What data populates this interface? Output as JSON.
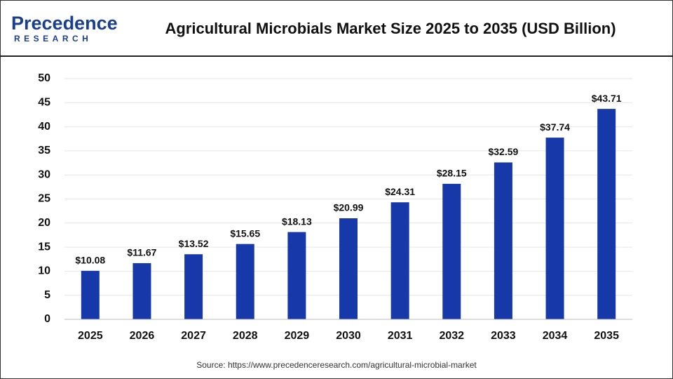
{
  "logo": {
    "name": "Precedence",
    "tagline": "RESEARCH"
  },
  "chart_data": {
    "type": "bar",
    "title": "Agricultural Microbials Market Size 2025 to 2035 (USD Billion)",
    "categories": [
      "2025",
      "2026",
      "2027",
      "2028",
      "2029",
      "2030",
      "2031",
      "2032",
      "2033",
      "2034",
      "2035"
    ],
    "values": [
      10.08,
      11.67,
      13.52,
      15.65,
      18.13,
      20.99,
      24.31,
      28.15,
      32.59,
      37.74,
      43.71
    ],
    "value_labels": [
      "$10.08",
      "$11.67",
      "$13.52",
      "$15.65",
      "$18.13",
      "$20.99",
      "$24.31",
      "$28.15",
      "$32.59",
      "$37.74",
      "$43.71"
    ],
    "color": "#1638a8",
    "ylim": [
      0,
      50
    ],
    "yticks": [
      0,
      5,
      10,
      15,
      20,
      25,
      30,
      35,
      40,
      45,
      50
    ],
    "grid": true,
    "source": "Source: https://www.precedenceresearch.com/agricultural-microbial-market"
  }
}
